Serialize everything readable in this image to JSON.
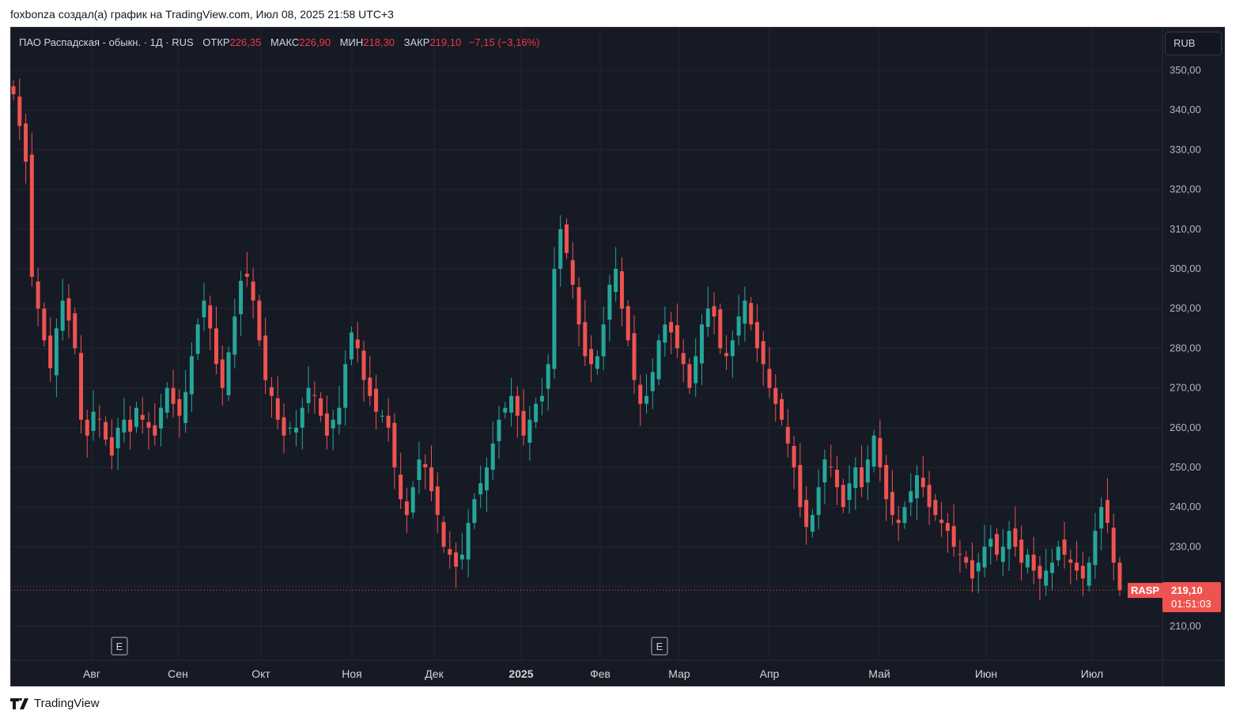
{
  "caption": "foxbonza создал(а) график на TradingView.com, Июл 08, 2025 21:58 UTC+3",
  "legend": {
    "symbol": "ПАО Распадская - обыкн. · 1Д · RUS",
    "open_label": "ОТКР",
    "open": "226,35",
    "high_label": "МАКС",
    "high": "226,90",
    "low_label": "МИН",
    "low": "218,30",
    "close_label": "ЗАКР",
    "close": "219,10",
    "change": "−7,15 (−3,16%)"
  },
  "currency": "RUB",
  "price_label": {
    "ticker": "RASP",
    "price": "219,10",
    "countdown": "01:51:03"
  },
  "footer": "TradingView",
  "colors": {
    "up": "#26a69a",
    "down": "#ef5350",
    "background": "#161a25",
    "grid": "#232632"
  },
  "chart_data": {
    "type": "candlestick",
    "y_axis": {
      "min": 210,
      "max": 350,
      "step": 10,
      "ticks": [
        "210,00",
        "220,00",
        "230,00",
        "240,00",
        "250,00",
        "260,00",
        "270,00",
        "280,00",
        "290,00",
        "300,00",
        "310,00",
        "320,00",
        "330,00",
        "340,00",
        "350,00"
      ]
    },
    "x_axis": {
      "labels": [
        "Авг",
        "Сен",
        "Окт",
        "Ноя",
        "Дек",
        "2025",
        "Фев",
        "Мар",
        "Апр",
        "Май",
        "Июн",
        "Июл"
      ],
      "bold": "2025"
    },
    "last_close": 219.1,
    "earnings_markers": [
      {
        "label": "E",
        "month": "Авг"
      },
      {
        "label": "E",
        "month": "Мар"
      }
    ],
    "close_series": [
      344,
      336,
      327,
      298,
      290,
      282,
      275,
      285,
      292,
      287,
      280,
      262,
      258,
      264,
      262,
      257,
      253,
      260,
      262,
      259,
      265,
      262,
      260,
      258,
      265,
      270,
      266,
      263,
      269,
      278,
      286,
      292,
      285,
      276,
      270,
      279,
      288,
      297,
      298,
      292,
      282,
      272,
      268,
      262,
      258,
      260,
      260,
      265,
      270,
      268,
      263,
      258,
      262,
      265,
      276,
      284,
      280,
      272,
      268,
      264,
      263,
      260,
      250,
      242,
      238,
      245,
      252,
      250,
      244,
      238,
      230,
      228,
      225,
      228,
      236,
      242,
      246,
      250,
      256,
      262,
      265,
      268,
      263,
      258,
      262,
      266,
      268,
      276,
      300,
      310,
      304,
      296,
      286,
      278,
      276,
      278,
      286,
      296,
      300,
      290,
      282,
      272,
      266,
      268,
      274,
      282,
      286,
      284,
      280,
      276,
      270,
      278,
      286,
      290,
      288,
      280,
      278,
      282,
      288,
      292,
      286,
      280,
      276,
      270,
      266,
      262,
      256,
      250,
      240,
      235,
      238,
      245,
      252,
      250,
      245,
      240,
      246,
      250,
      245,
      252,
      258,
      250,
      242,
      238,
      236,
      240,
      244,
      248,
      245,
      240,
      238,
      236,
      234,
      230,
      228,
      226,
      222,
      226,
      230,
      232,
      228,
      230,
      234,
      230,
      226,
      228,
      224,
      222,
      224,
      226,
      230,
      228,
      226,
      224,
      222,
      226,
      234,
      240,
      236,
      226,
      219.1
    ]
  }
}
